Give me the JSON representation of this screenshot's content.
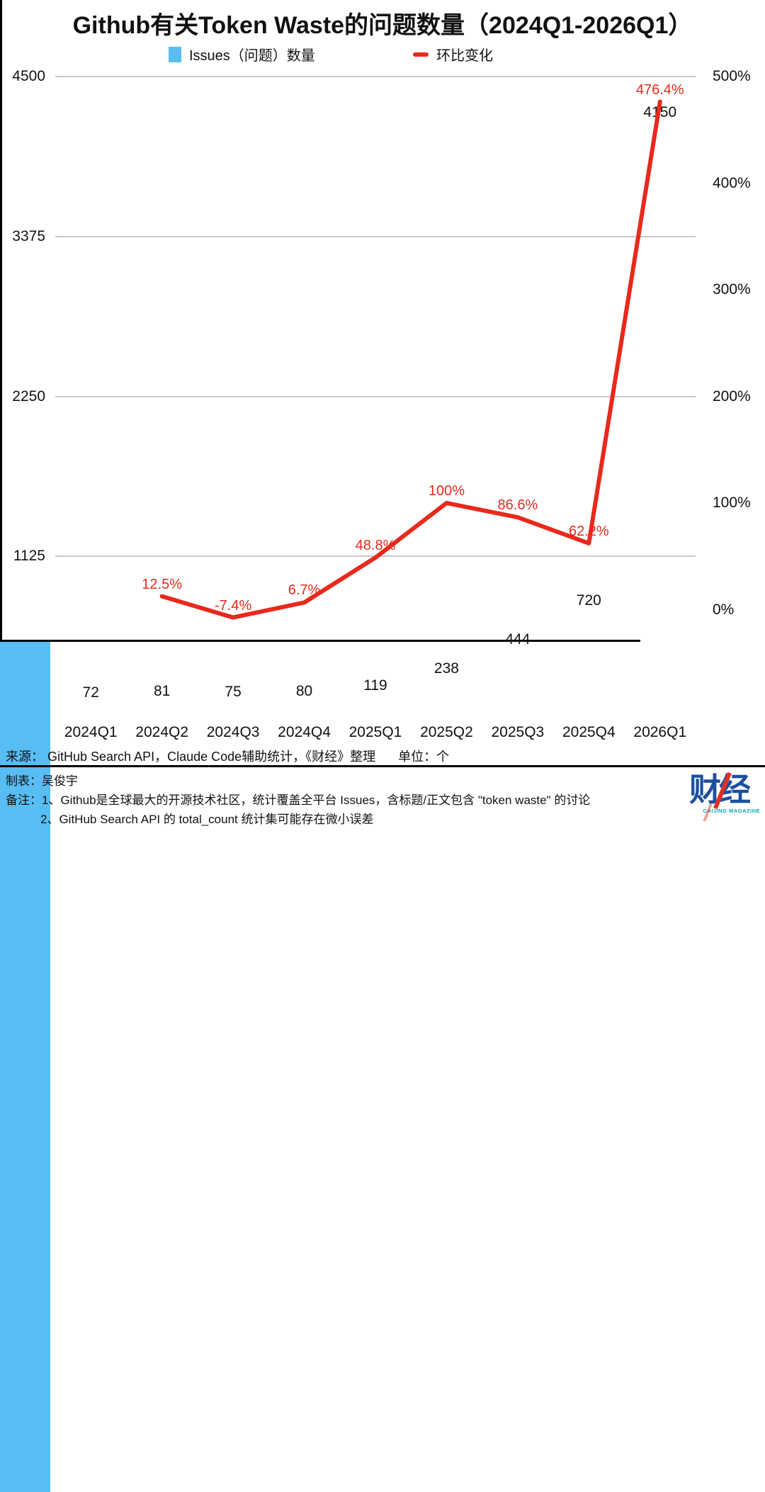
{
  "title": "Github有关Token Waste的问题数量（2024Q1-2026Q1）",
  "legend": {
    "bars": "Issues（问题）数量",
    "line": "环比变化"
  },
  "chart_data": {
    "type": "bar+line combo",
    "categories": [
      "2024Q1",
      "2024Q2",
      "2024Q3",
      "2024Q4",
      "2025Q1",
      "2025Q2",
      "2025Q3",
      "2025Q4",
      "2026Q1"
    ],
    "series": [
      {
        "name": "Issues（问题）数量",
        "type": "bar",
        "axis": "left",
        "values": [
          72,
          81,
          75,
          80,
          119,
          238,
          444,
          720,
          4150
        ],
        "labels": [
          "72",
          "81",
          "75",
          "80",
          "119",
          "238",
          "444",
          "720",
          "4150"
        ]
      },
      {
        "name": "环比变化",
        "type": "line",
        "axis": "right",
        "values": [
          null,
          12.5,
          -7.4,
          6.7,
          48.8,
          100,
          86.6,
          62.2,
          476.4
        ],
        "labels": [
          null,
          "12.5%",
          "-7.4%",
          "6.7%",
          "48.8%",
          "100%",
          "86.6%",
          "62.2%",
          "476.4%"
        ]
      }
    ],
    "left_axis": {
      "min": 0,
      "max": 4500,
      "ticks": [
        {
          "value": 4500,
          "label": "4500"
        },
        {
          "value": 3375,
          "label": "3375"
        },
        {
          "value": 2250,
          "label": "2250"
        },
        {
          "value": 1125,
          "label": "1125"
        }
      ]
    },
    "right_axis": {
      "min": -100,
      "max": 500,
      "ticks": [
        {
          "value": 500,
          "label": "500%"
        },
        {
          "value": 400,
          "label": "400%"
        },
        {
          "value": 300,
          "label": "300%"
        },
        {
          "value": 200,
          "label": "200%"
        },
        {
          "value": 100,
          "label": "100%"
        },
        {
          "value": 0,
          "label": "0%"
        }
      ]
    },
    "grid": "horizontal",
    "legend_position": "top"
  },
  "colors": {
    "bar": "#57bdf3",
    "line": "#e8291c",
    "grid": "#c9c9c9",
    "axis": "#000000",
    "text": "#111111",
    "logo_blue": "#1c4f9e",
    "logo_red": "#e03020",
    "logo_teal": "#00a9b4"
  },
  "footer": {
    "source": "来源： GitHub Search API，Claude Code辅助统计，《财经》整理",
    "unit": "单位：个",
    "maker": "制表：吴俊宇",
    "note1": "备注：1、Github是全球最大的开源技术社区，统计覆盖全平台 Issues，含标题/正文包含 \"token waste\" 的讨论",
    "note2": "2、GitHub Search API 的 total_count 统计集可能存在微小误差"
  },
  "logo": {
    "text": "财经",
    "subtext": "CAIJING MAGAZINE"
  }
}
